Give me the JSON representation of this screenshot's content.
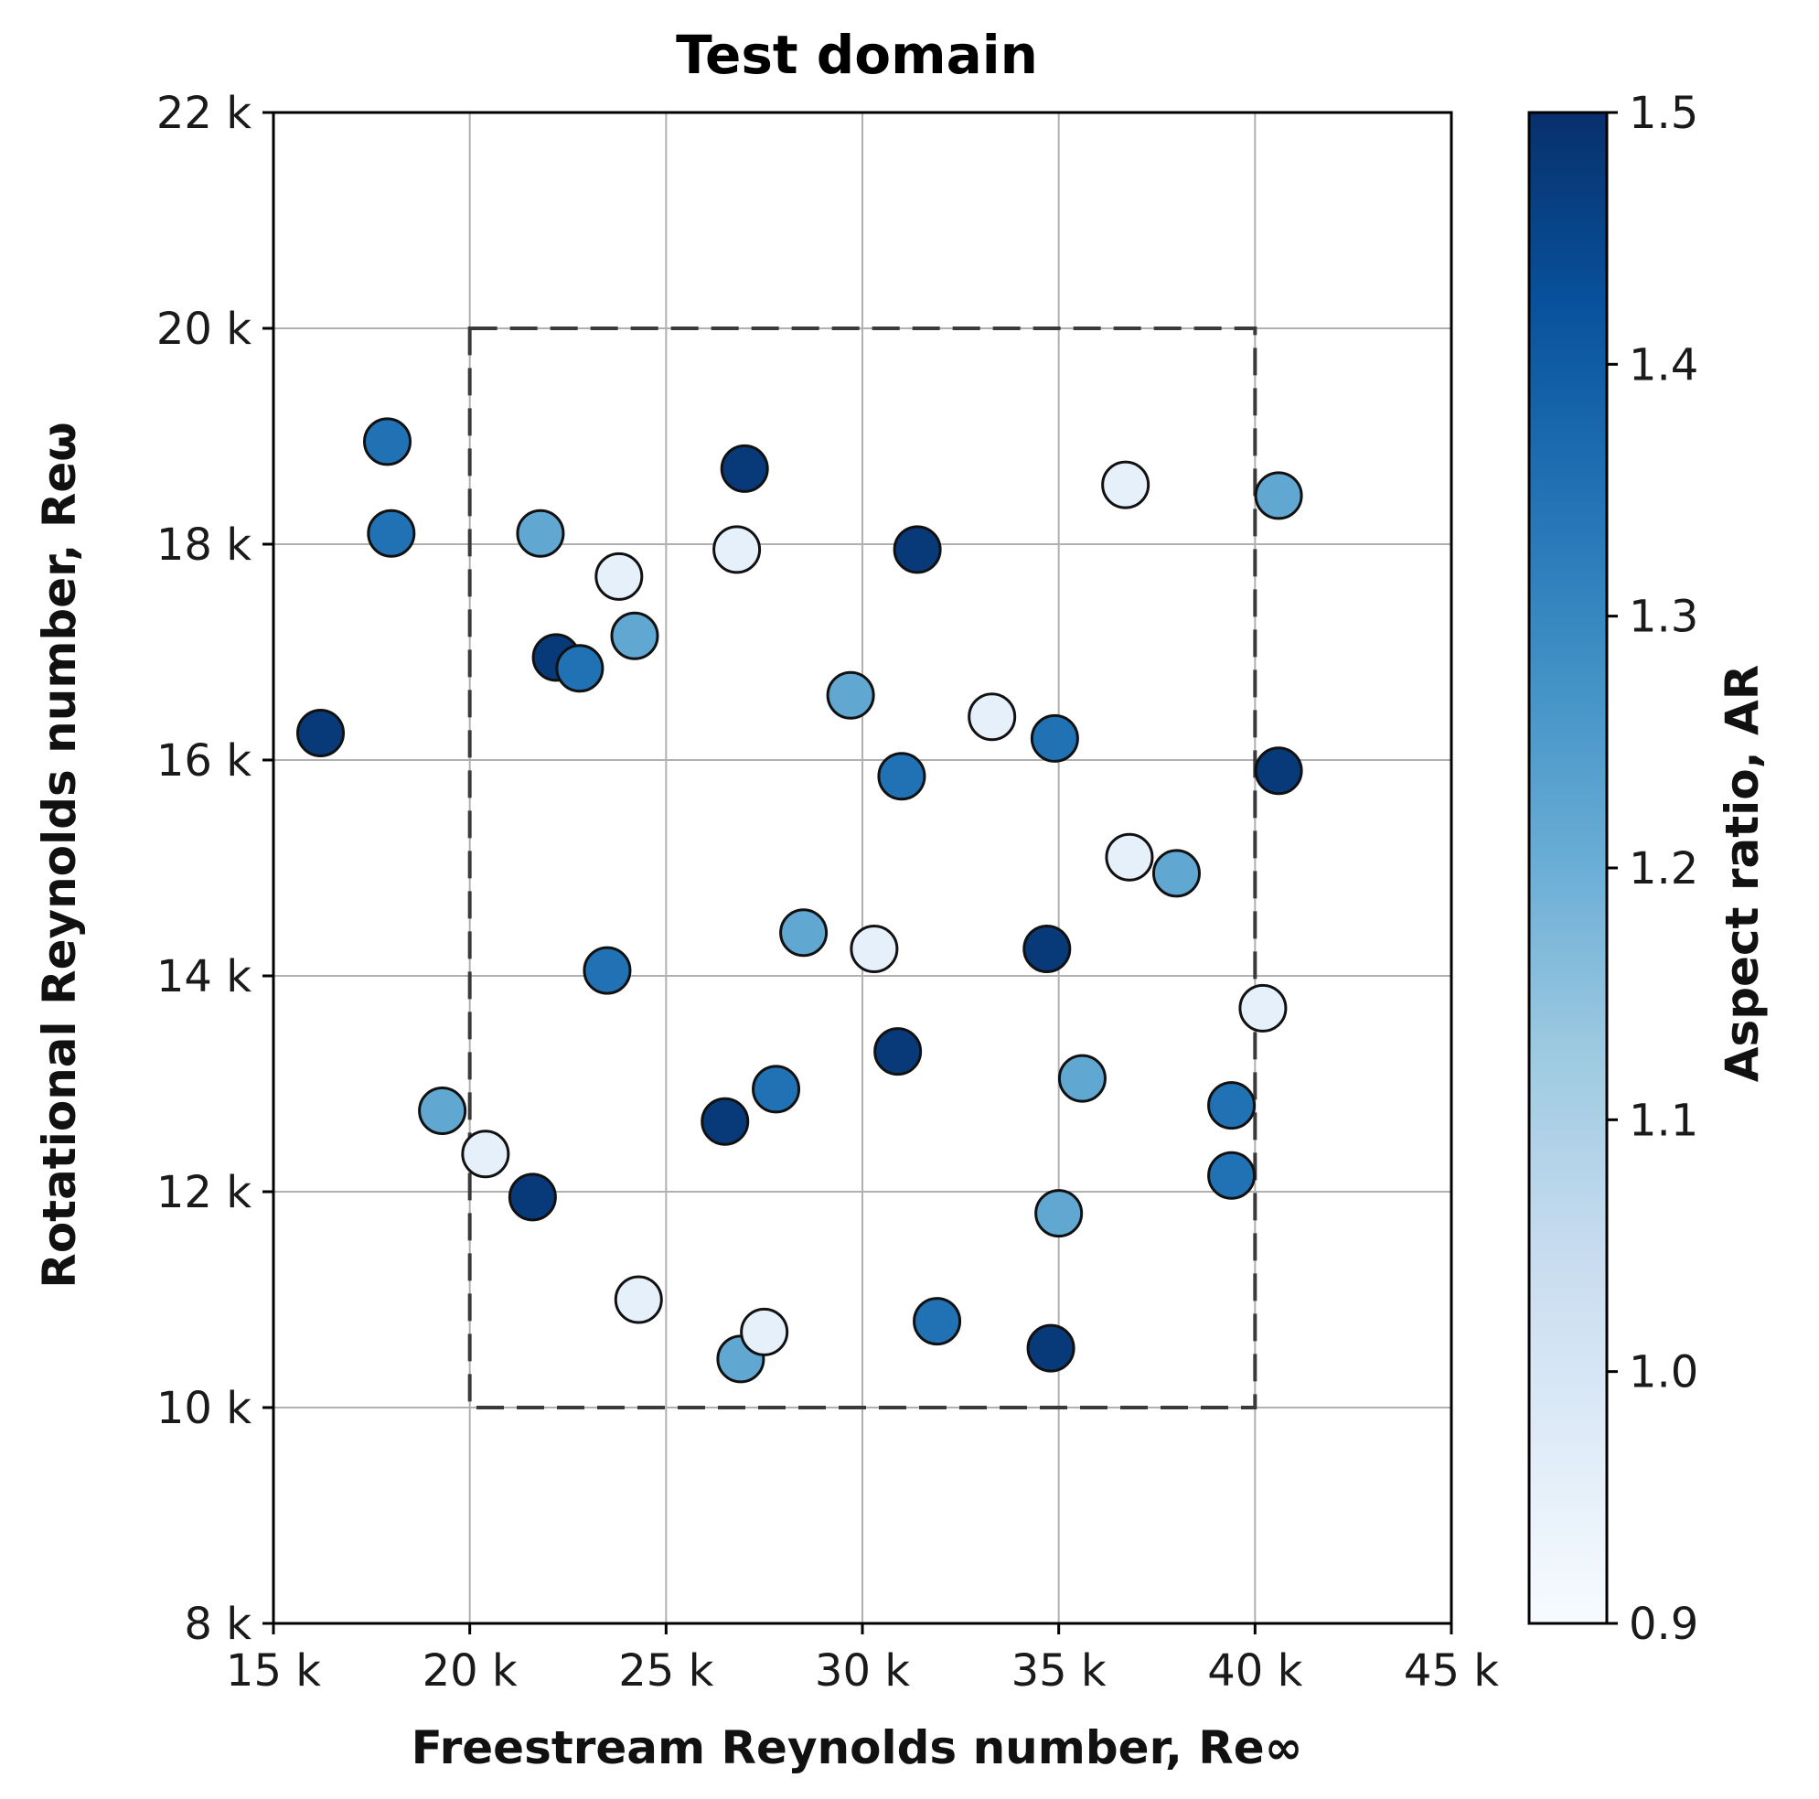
{
  "chart_data": {
    "type": "scatter",
    "title": "Test domain",
    "xlabel": "Freestream Reynolds number, Re∞",
    "ylabel": "Rotational Reynolds number, Reω",
    "xlim": [
      15000,
      45000
    ],
    "ylim": [
      8000,
      22000
    ],
    "x_ticks": [
      {
        "value": 15000,
        "label": "15 k"
      },
      {
        "value": 20000,
        "label": "20 k"
      },
      {
        "value": 25000,
        "label": "25 k"
      },
      {
        "value": 30000,
        "label": "30 k"
      },
      {
        "value": 35000,
        "label": "35 k"
      },
      {
        "value": 40000,
        "label": "40 k"
      },
      {
        "value": 45000,
        "label": "45 k"
      }
    ],
    "y_ticks": [
      {
        "value": 8000,
        "label": "8 k"
      },
      {
        "value": 10000,
        "label": "10 k"
      },
      {
        "value": 12000,
        "label": "12 k"
      },
      {
        "value": 14000,
        "label": "14 k"
      },
      {
        "value": 16000,
        "label": "16 k"
      },
      {
        "value": 18000,
        "label": "18 k"
      },
      {
        "value": 20000,
        "label": "20 k"
      },
      {
        "value": 22000,
        "label": "22 k"
      }
    ],
    "grid": true,
    "test_domain_box": {
      "x": [
        20000,
        40000
      ],
      "y": [
        10000,
        20000
      ],
      "style": "dashed"
    },
    "colorbar": {
      "label": "Aspect ratio, AR",
      "colormap": "Blues",
      "range": [
        0.9,
        1.5
      ],
      "ticks": [
        {
          "value": 0.9,
          "label": "0.9"
        },
        {
          "value": 1.0,
          "label": "1.0"
        },
        {
          "value": 1.1,
          "label": "1.1"
        },
        {
          "value": 1.2,
          "label": "1.2"
        },
        {
          "value": 1.3,
          "label": "1.3"
        },
        {
          "value": 1.4,
          "label": "1.4"
        },
        {
          "value": 1.5,
          "label": "1.5"
        }
      ]
    },
    "points": [
      {
        "x": 16200,
        "y": 16250,
        "ar": 1.48
      },
      {
        "x": 17900,
        "y": 18950,
        "ar": 1.35
      },
      {
        "x": 18000,
        "y": 18100,
        "ar": 1.35
      },
      {
        "x": 19300,
        "y": 12750,
        "ar": 1.22
      },
      {
        "x": 20400,
        "y": 12350,
        "ar": 0.95
      },
      {
        "x": 21600,
        "y": 11950,
        "ar": 1.48
      },
      {
        "x": 21800,
        "y": 18100,
        "ar": 1.22
      },
      {
        "x": 22200,
        "y": 16950,
        "ar": 1.48
      },
      {
        "x": 22800,
        "y": 16850,
        "ar": 1.35
      },
      {
        "x": 23500,
        "y": 14050,
        "ar": 1.35
      },
      {
        "x": 23800,
        "y": 17700,
        "ar": 0.95
      },
      {
        "x": 24200,
        "y": 17150,
        "ar": 1.22
      },
      {
        "x": 24300,
        "y": 11000,
        "ar": 0.95
      },
      {
        "x": 26500,
        "y": 12650,
        "ar": 1.48
      },
      {
        "x": 26800,
        "y": 17950,
        "ar": 0.95
      },
      {
        "x": 26900,
        "y": 10450,
        "ar": 1.22
      },
      {
        "x": 27000,
        "y": 18700,
        "ar": 1.48
      },
      {
        "x": 27500,
        "y": 10700,
        "ar": 0.95
      },
      {
        "x": 27800,
        "y": 12950,
        "ar": 1.35
      },
      {
        "x": 28500,
        "y": 14400,
        "ar": 1.22
      },
      {
        "x": 29700,
        "y": 16600,
        "ar": 1.22
      },
      {
        "x": 30300,
        "y": 14250,
        "ar": 0.95
      },
      {
        "x": 30900,
        "y": 13300,
        "ar": 1.48
      },
      {
        "x": 31000,
        "y": 15850,
        "ar": 1.35
      },
      {
        "x": 31400,
        "y": 17950,
        "ar": 1.48
      },
      {
        "x": 31900,
        "y": 10800,
        "ar": 1.35
      },
      {
        "x": 33300,
        "y": 16400,
        "ar": 0.95
      },
      {
        "x": 34700,
        "y": 14250,
        "ar": 1.48
      },
      {
        "x": 34800,
        "y": 10550,
        "ar": 1.48
      },
      {
        "x": 34900,
        "y": 16200,
        "ar": 1.35
      },
      {
        "x": 35000,
        "y": 11800,
        "ar": 1.22
      },
      {
        "x": 35600,
        "y": 13050,
        "ar": 1.22
      },
      {
        "x": 36700,
        "y": 18550,
        "ar": 0.95
      },
      {
        "x": 36800,
        "y": 15100,
        "ar": 0.95
      },
      {
        "x": 38000,
        "y": 14950,
        "ar": 1.22
      },
      {
        "x": 39400,
        "y": 12800,
        "ar": 1.35
      },
      {
        "x": 39400,
        "y": 12150,
        "ar": 1.35
      },
      {
        "x": 40200,
        "y": 13700,
        "ar": 0.95
      },
      {
        "x": 40600,
        "y": 18450,
        "ar": 1.22
      },
      {
        "x": 40600,
        "y": 15900,
        "ar": 1.48
      }
    ]
  }
}
